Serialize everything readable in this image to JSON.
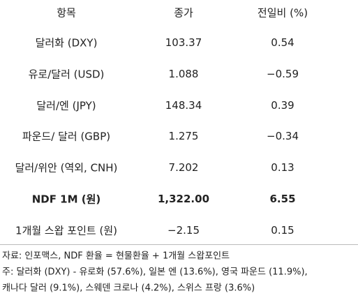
{
  "table": {
    "header": [
      "항목",
      "종가",
      "전일비 (%)"
    ],
    "rows": [
      [
        "달러화 (DXY)",
        "103.37",
        "0.54"
      ],
      [
        "유로/달러 (USD)",
        "1.088",
        "−0.59"
      ],
      [
        "달러/엔 (JPY)",
        "148.34",
        "0.39"
      ],
      [
        "파운드/ 달러 (GBP)",
        "1.275",
        "−0.34"
      ],
      [
        "달러/위안 (역외, CNH)",
        "7.202",
        "0.13"
      ],
      [
        "NDF 1M (원)",
        "1,322.00",
        "6.55"
      ],
      [
        "1개월 스왑 포인트 (원)",
        "−2.15",
        "0.15"
      ]
    ]
  },
  "notes": [
    "자료: 인포맥스, NDF 환율 = 현물환율 + 1개월 스왑포인트",
    "주: 달러화 (DXY) - 유로화 (57.6%), 일본 엔 (13.6%), 영국 파운드 (11.9%),",
    "캐나다 달러 (9.1%), 스웨덴 크로나 (4.2%), 스위스 프랑 (3.6%)"
  ]
}
